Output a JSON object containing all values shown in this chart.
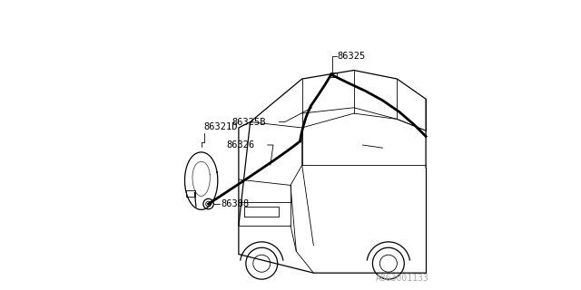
{
  "bg_color": "#ffffff",
  "line_color": "#000000",
  "thin_line_color": "#555555",
  "label_color": "#000000",
  "footer_color": "#aaaaaa",
  "footer_text": "A863001133",
  "font_size_labels": 7.5,
  "font_size_footer": 7
}
